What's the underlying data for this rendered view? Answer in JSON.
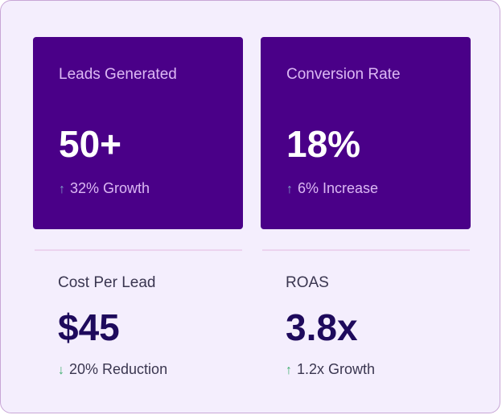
{
  "metrics": {
    "featured": [
      {
        "label": "Leads Generated",
        "value": "50+",
        "arrow": "↑",
        "arrow_icon": "arrow-up-icon",
        "change": "32% Growth"
      },
      {
        "label": "Conversion Rate",
        "value": "18%",
        "arrow": "↑",
        "arrow_icon": "arrow-up-icon",
        "change": "6% Increase"
      }
    ],
    "secondary": [
      {
        "label": "Cost Per Lead",
        "value": "$45",
        "arrow": "↓",
        "arrow_icon": "arrow-down-icon",
        "change": "20% Reduction"
      },
      {
        "label": "ROAS",
        "value": "3.8x",
        "arrow": "↑",
        "arrow_icon": "arrow-up-icon",
        "change": "1.2x Growth"
      }
    ]
  },
  "colors": {
    "card_bg": "#4a0088",
    "panel_bg": "#f4eefd",
    "value_dark": "#1e0a5c",
    "positive": "#3fae6e"
  }
}
